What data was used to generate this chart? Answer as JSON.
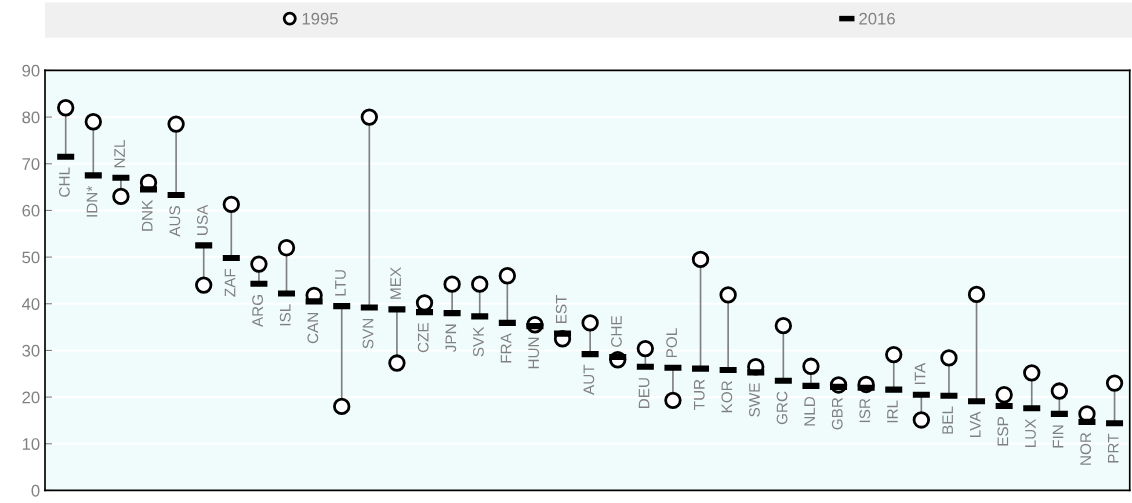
{
  "chart_data": {
    "type": "scatter",
    "categories": [
      "CHL",
      "IDN*",
      "NZL",
      "DNK",
      "AUS",
      "USA",
      "ZAF",
      "ARG",
      "ISL",
      "CAN",
      "LTU",
      "SVN",
      "MEX",
      "CZE",
      "JPN",
      "SVK",
      "FRA",
      "HUN",
      "EST",
      "AUT",
      "CHE",
      "DEU",
      "POL",
      "TUR",
      "KOR",
      "SWE",
      "GRC",
      "NLD",
      "GBR",
      "ISR",
      "IRL",
      "ITA",
      "BEL",
      "LVA",
      "ESP",
      "LUX",
      "FIN",
      "NOR",
      "PRT"
    ],
    "series": [
      {
        "name": "1995",
        "color": "#000000",
        "marker": "circle",
        "values": [
          82,
          79,
          63,
          66,
          78.5,
          44,
          61.3,
          48.5,
          52,
          41.8,
          18,
          80,
          27.3,
          40.2,
          44.2,
          44.2,
          46,
          35.5,
          32.5,
          35.9,
          28,
          30.4,
          19.3,
          49.5,
          41.9,
          26.5,
          35.3,
          26.6,
          22.6,
          22.7,
          29.1,
          15.1,
          28.4,
          42,
          20.5,
          25.2,
          21.3,
          16.4,
          23
        ]
      },
      {
        "name": "2016",
        "color": "#000000",
        "values": [
          71.5,
          67.5,
          67,
          64.5,
          63.3,
          52.5,
          49.8,
          44.3,
          42.2,
          40.5,
          39.5,
          39.2,
          38.8,
          38.2,
          38,
          37.3,
          35.9,
          35.2,
          33.6,
          29.2,
          28.6,
          26.5,
          26.3,
          26.1,
          25.8,
          25.3,
          23.5,
          22.4,
          22.2,
          22,
          21.6,
          20.5,
          20.3,
          19.1,
          18.1,
          17.6,
          16.4,
          14.7,
          14.4
        ]
      }
    ],
    "ylim": [
      0,
      90
    ],
    "yticks": [
      0,
      10,
      20,
      30,
      40,
      50,
      60,
      70,
      80,
      90
    ],
    "grid": "y",
    "legend": "top"
  }
}
